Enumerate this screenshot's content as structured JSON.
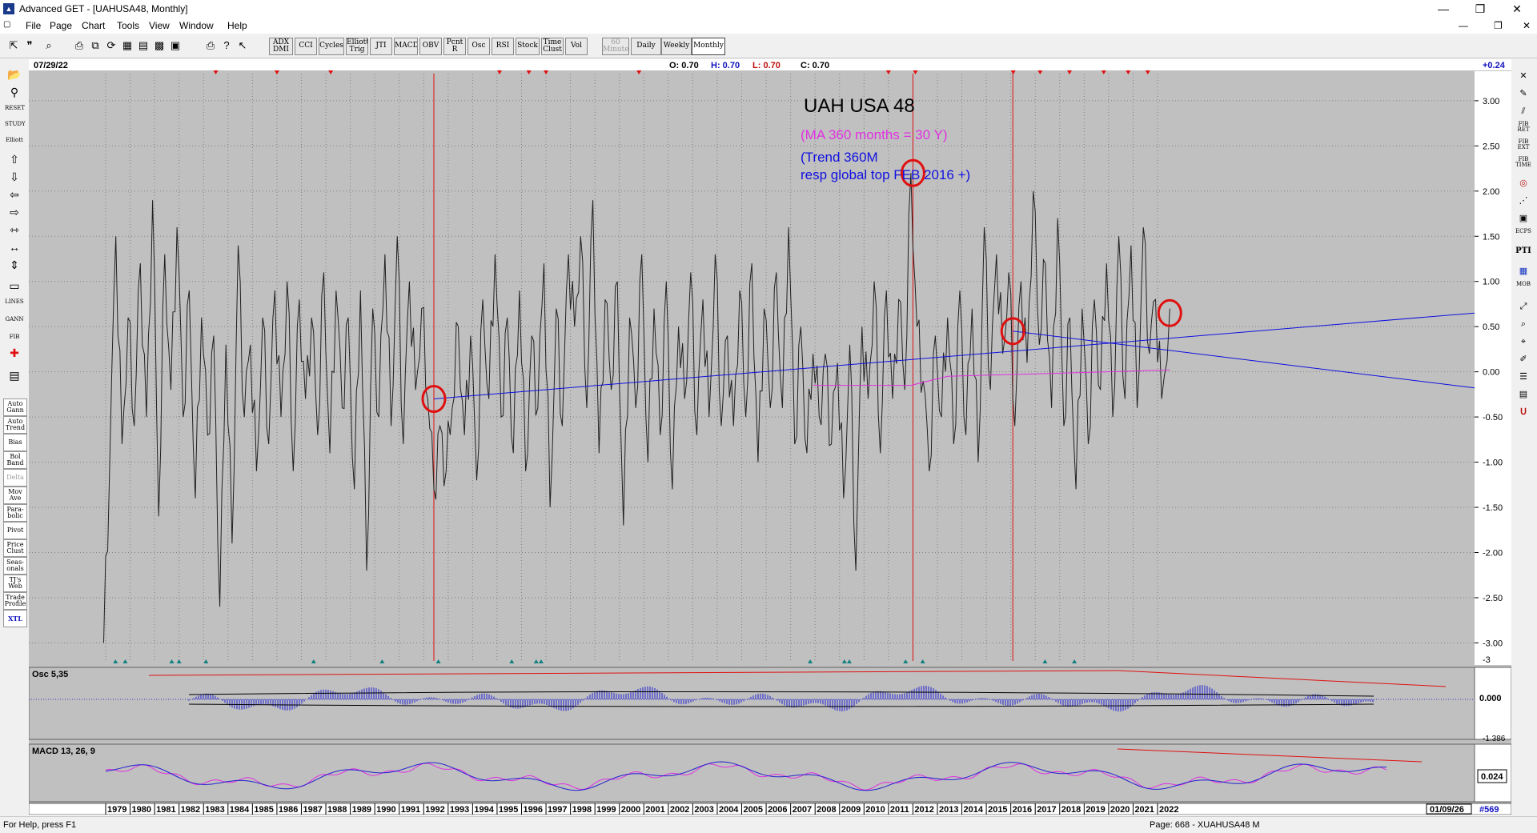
{
  "window": {
    "title": "Advanced GET - [UAHUSA48, Monthly]"
  },
  "menu": [
    "File",
    "Page",
    "Chart",
    "Tools",
    "View",
    "Window",
    "Help"
  ],
  "toolbar": {
    "buttons": [
      {
        "label": "ADX DMI"
      },
      {
        "label": "CCI"
      },
      {
        "label": "Cycles"
      },
      {
        "label": "Elliott Trig"
      },
      {
        "label": "JTI"
      },
      {
        "label": "MACD"
      },
      {
        "label": "OBV"
      },
      {
        "label": "Pcnt R"
      },
      {
        "label": "Osc"
      },
      {
        "label": "RSI"
      },
      {
        "label": "Stock"
      },
      {
        "label": "Time Clust"
      },
      {
        "label": "Vol"
      }
    ],
    "timeframes": [
      {
        "label": "60 Minute",
        "state": "disabled"
      },
      {
        "label": "Daily",
        "state": "normal"
      },
      {
        "label": "Weekly",
        "state": "normal"
      },
      {
        "label": "Monthly",
        "state": "selected"
      }
    ]
  },
  "left_panel": {
    "buttons": [
      {
        "label": "Auto Gann"
      },
      {
        "label": "Auto Trend"
      },
      {
        "label": "Bias"
      },
      {
        "label": "Bol Band"
      },
      {
        "label": "Delta"
      },
      {
        "label": "Mov Ave"
      },
      {
        "label": "Para-bolic"
      },
      {
        "label": "Pivot"
      },
      {
        "label": "Price Clust"
      },
      {
        "label": "Seas-onals"
      },
      {
        "label": "TJ's Web"
      },
      {
        "label": "Trade Profile"
      },
      {
        "label": "XTL"
      }
    ],
    "tool_labels": {
      "reset": "RESET",
      "study": "STUDY",
      "elliott": "Elliott",
      "lines": "LINES",
      "gann": "GANN",
      "fib": "FIB"
    }
  },
  "right_panel": {
    "labels": [
      "FIB RET",
      "FIB EXT",
      "FIB TIME",
      "ECPS",
      "PTI",
      "MOB"
    ]
  },
  "header": {
    "date": "07/29/22",
    "o_label": "O: 0.70",
    "h_label": "H: 0.70",
    "l_label": "L: 0.70",
    "c_label": "C: 0.70",
    "right_value": "+0.24"
  },
  "annotations": {
    "title": "UAH USA 48",
    "ma_note": "(MA 360 months = 30 Y)",
    "trend_note_1": "(Trend 360M",
    "trend_note_2": "resp global top FEB 2016 +)"
  },
  "colors": {
    "ma": "#e030e0",
    "trend": "#1010e0",
    "price": "#202020",
    "circle": "#e01010",
    "cycle_line": "#e01010"
  },
  "oscillator": {
    "label": "Osc 5,35",
    "value": "0.000",
    "bottom_value": "-1.386"
  },
  "macd": {
    "label": "MACD 13, 26, 9",
    "value": "0.024"
  },
  "footer": {
    "last_date": "01/09/26",
    "bar_count": "#569"
  },
  "status": {
    "help": "For Help, press F1",
    "page": "Page: 668 - XUAHUSA48 M"
  },
  "chart_data": {
    "type": "line",
    "title": "UAH USA 48",
    "x_start": "1978-12",
    "x_end": "2022-07",
    "x_ticks": [
      "1979",
      "1980",
      "1981",
      "1982",
      "1983",
      "1984",
      "1985",
      "1986",
      "1987",
      "1988",
      "1989",
      "1990",
      "1991",
      "1992",
      "1993",
      "1994",
      "1995",
      "1996",
      "1997",
      "1998",
      "1999",
      "2000",
      "2001",
      "2002",
      "2003",
      "2004",
      "2005",
      "2006",
      "2007",
      "2008",
      "2009",
      "2010",
      "2011",
      "2012",
      "2013",
      "2014",
      "2015",
      "2016",
      "2017",
      "2018",
      "2019",
      "2020",
      "2021",
      "2022"
    ],
    "ylim": [
      -3.2,
      3.3
    ],
    "y_ticks": [
      3.0,
      2.5,
      2.0,
      1.5,
      1.0,
      0.5,
      0.0,
      -0.5,
      -1.0,
      -1.5,
      -2.0,
      -2.5,
      -3.0
    ],
    "y_tick_labels": [
      "3.00",
      "2.50",
      "2.00",
      "1.50",
      "1.00",
      "0.50",
      "0.00",
      "-0.50",
      "-1.00",
      "-1.50",
      "-2.00",
      "-2.50",
      "-3.00"
    ],
    "y_bottom_label": "-3",
    "series": [
      {
        "name": "UAHUSA48",
        "points": [
          [
            "1978-12",
            -3.0
          ],
          [
            "1979-03",
            -1.0
          ],
          [
            "1979-06",
            1.5
          ],
          [
            "1979-09",
            -0.8
          ],
          [
            "1979-12",
            0.6
          ],
          [
            "1980-03",
            -0.6
          ],
          [
            "1980-06",
            1.2
          ],
          [
            "1980-09",
            -0.5
          ],
          [
            "1980-12",
            1.9
          ],
          [
            "1981-03",
            -1.6
          ],
          [
            "1981-06",
            1.3
          ],
          [
            "1981-09",
            -0.2
          ],
          [
            "1981-12",
            1.6
          ],
          [
            "1982-03",
            -0.5
          ],
          [
            "1982-06",
            0.9
          ],
          [
            "1982-09",
            -1.4
          ],
          [
            "1982-12",
            0.6
          ],
          [
            "1983-03",
            -0.7
          ],
          [
            "1983-06",
            0.4
          ],
          [
            "1983-09",
            -2.6
          ],
          [
            "1983-12",
            0.3
          ],
          [
            "1984-03",
            -1.9
          ],
          [
            "1984-06",
            1.4
          ],
          [
            "1984-09",
            -0.5
          ],
          [
            "1984-12",
            0.3
          ],
          [
            "1985-03",
            -1.1
          ],
          [
            "1985-06",
            0.6
          ],
          [
            "1985-09",
            -0.8
          ],
          [
            "1985-12",
            0.9
          ],
          [
            "1986-03",
            -0.5
          ],
          [
            "1986-06",
            1.0
          ],
          [
            "1986-09",
            -1.1
          ],
          [
            "1986-12",
            0.8
          ],
          [
            "1987-03",
            -0.3
          ],
          [
            "1987-06",
            0.6
          ],
          [
            "1987-09",
            -0.7
          ],
          [
            "1987-12",
            1.1
          ],
          [
            "1988-03",
            -0.9
          ],
          [
            "1988-06",
            0.9
          ],
          [
            "1988-09",
            -0.4
          ],
          [
            "1988-12",
            0.6
          ],
          [
            "1989-03",
            -1.3
          ],
          [
            "1989-06",
            0.9
          ],
          [
            "1989-09",
            -2.2
          ],
          [
            "1989-12",
            0.7
          ],
          [
            "1990-03",
            -0.5
          ],
          [
            "1990-06",
            1.3
          ],
          [
            "1990-09",
            -0.6
          ],
          [
            "1990-12",
            1.5
          ],
          [
            "1991-03",
            -0.8
          ],
          [
            "1991-06",
            1.0
          ],
          [
            "1991-09",
            -0.2
          ],
          [
            "1991-12",
            0.7
          ],
          [
            "1992-03",
            -0.3
          ],
          [
            "1992-06",
            -1.3
          ],
          [
            "1992-09",
            -0.6
          ],
          [
            "1992-12",
            -1.1
          ],
          [
            "1993-03",
            -0.4
          ],
          [
            "1993-06",
            0.5
          ],
          [
            "1993-09",
            -0.7
          ],
          [
            "1993-12",
            0.4
          ],
          [
            "1994-03",
            -1.2
          ],
          [
            "1994-06",
            0.8
          ],
          [
            "1994-09",
            -0.3
          ],
          [
            "1994-12",
            1.3
          ],
          [
            "1995-03",
            -0.5
          ],
          [
            "1995-06",
            0.6
          ],
          [
            "1995-09",
            -0.9
          ],
          [
            "1995-12",
            0.9
          ],
          [
            "1996-03",
            -1.1
          ],
          [
            "1996-06",
            0.4
          ],
          [
            "1996-09",
            -0.4
          ],
          [
            "1996-12",
            1.2
          ],
          [
            "1997-03",
            -1.5
          ],
          [
            "1997-06",
            0.7
          ],
          [
            "1997-09",
            -0.6
          ],
          [
            "1997-12",
            1.3
          ],
          [
            "1998-03",
            0.5
          ],
          [
            "1998-06",
            1.5
          ],
          [
            "1998-09",
            -0.4
          ],
          [
            "1998-12",
            1.9
          ],
          [
            "1999-03",
            -0.9
          ],
          [
            "1999-06",
            0.8
          ],
          [
            "1999-09",
            -0.2
          ],
          [
            "1999-12",
            1.0
          ],
          [
            "2000-03",
            -1.7
          ],
          [
            "2000-06",
            0.6
          ],
          [
            "2000-09",
            -0.4
          ],
          [
            "2000-12",
            1.3
          ],
          [
            "2001-03",
            -1.0
          ],
          [
            "2001-06",
            0.7
          ],
          [
            "2001-09",
            -0.7
          ],
          [
            "2001-12",
            1.0
          ],
          [
            "2002-03",
            -1.3
          ],
          [
            "2002-06",
            0.5
          ],
          [
            "2002-09",
            -0.3
          ],
          [
            "2002-12",
            1.1
          ],
          [
            "2003-03",
            -0.7
          ],
          [
            "2003-06",
            0.8
          ],
          [
            "2003-09",
            -0.5
          ],
          [
            "2003-12",
            1.3
          ],
          [
            "2004-03",
            -0.6
          ],
          [
            "2004-06",
            0.4
          ],
          [
            "2004-09",
            -0.6
          ],
          [
            "2004-12",
            0.9
          ],
          [
            "2005-03",
            -0.5
          ],
          [
            "2005-06",
            1.2
          ],
          [
            "2005-09",
            -1.0
          ],
          [
            "2005-12",
            0.7
          ],
          [
            "2006-03",
            -0.4
          ],
          [
            "2006-06",
            1.1
          ],
          [
            "2006-09",
            -0.4
          ],
          [
            "2006-12",
            1.6
          ],
          [
            "2007-03",
            -0.8
          ],
          [
            "2007-06",
            0.5
          ],
          [
            "2007-09",
            -0.9
          ],
          [
            "2007-12",
            0.2
          ],
          [
            "2008-03",
            -0.5
          ],
          [
            "2008-06",
            0.2
          ],
          [
            "2008-09",
            -0.8
          ],
          [
            "2008-12",
            0.1
          ],
          [
            "2009-03",
            -1.4
          ],
          [
            "2009-06",
            0.3
          ],
          [
            "2009-09",
            -2.2
          ],
          [
            "2009-12",
            0.5
          ],
          [
            "2010-03",
            -0.3
          ],
          [
            "2010-06",
            1.0
          ],
          [
            "2010-09",
            -0.9
          ],
          [
            "2010-12",
            0.9
          ],
          [
            "2011-03",
            -0.3
          ],
          [
            "2011-06",
            0.8
          ],
          [
            "2011-09",
            -0.2
          ],
          [
            "2011-12",
            2.2
          ],
          [
            "2012-03",
            0.5
          ],
          [
            "2012-06",
            -0.1
          ],
          [
            "2012-09",
            -1.1
          ],
          [
            "2012-12",
            0.4
          ],
          [
            "2013-03",
            -0.5
          ],
          [
            "2013-06",
            0.6
          ],
          [
            "2013-09",
            -0.8
          ],
          [
            "2013-12",
            0.9
          ],
          [
            "2014-03",
            -0.7
          ],
          [
            "2014-06",
            0.7
          ],
          [
            "2014-09",
            -1.0
          ],
          [
            "2014-12",
            1.6
          ],
          [
            "2015-03",
            -0.2
          ],
          [
            "2015-06",
            1.3
          ],
          [
            "2015-09",
            0.2
          ],
          [
            "2015-12",
            1.1
          ],
          [
            "2016-03",
            -0.6
          ],
          [
            "2016-06",
            1.0
          ],
          [
            "2016-09",
            0.1
          ],
          [
            "2016-12",
            2.0
          ],
          [
            "2017-03",
            0.3
          ],
          [
            "2017-06",
            1.2
          ],
          [
            "2017-09",
            -0.4
          ],
          [
            "2017-12",
            1.7
          ],
          [
            "2018-03",
            -0.6
          ],
          [
            "2018-06",
            0.6
          ],
          [
            "2018-09",
            -1.3
          ],
          [
            "2018-12",
            0.7
          ],
          [
            "2019-03",
            -0.8
          ],
          [
            "2019-06",
            0.8
          ],
          [
            "2019-09",
            -0.2
          ],
          [
            "2019-12",
            1.2
          ],
          [
            "2020-03",
            -0.5
          ],
          [
            "2020-06",
            1.5
          ],
          [
            "2020-09",
            -0.3
          ],
          [
            "2020-12",
            1.4
          ],
          [
            "2021-03",
            -0.4
          ],
          [
            "2021-06",
            1.6
          ],
          [
            "2021-09",
            0.2
          ],
          [
            "2021-12",
            0.8
          ],
          [
            "2022-03",
            -0.3
          ],
          [
            "2022-07",
            0.7
          ]
        ]
      },
      {
        "name": "MA 360",
        "points": [
          [
            "2007-12",
            -0.15
          ],
          [
            "2011-12",
            -0.15
          ],
          [
            "2013-06",
            -0.05
          ],
          [
            "2022-07",
            0.02
          ]
        ]
      },
      {
        "name": "Trend 360M",
        "points": [
          [
            "1992-06",
            -0.3
          ],
          [
            "2026-01",
            0.45
          ]
        ]
      },
      {
        "name": "Trend from FEB 2016",
        "points": [
          [
            "2016-02",
            0.45
          ],
          [
            "2026-01",
            0.12
          ]
        ]
      }
    ],
    "cycle_lines": [
      "1992-06",
      "2012-01",
      "2016-02"
    ],
    "circled_points": [
      [
        "1992-06",
        -0.3
      ],
      [
        "2012-01",
        2.2
      ],
      [
        "2016-02",
        0.45
      ],
      [
        "2022-07",
        0.65
      ]
    ]
  }
}
